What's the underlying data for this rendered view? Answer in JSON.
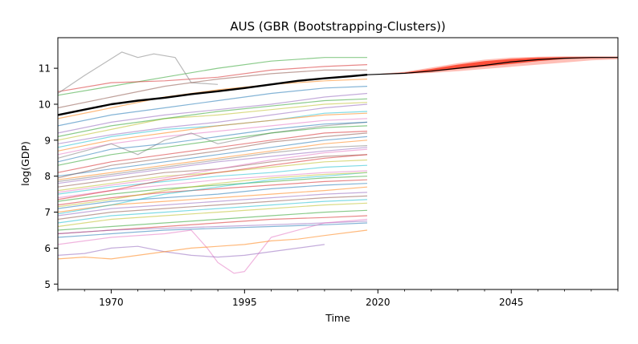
{
  "chart_data": {
    "type": "line",
    "title": "AUS (GBR (Bootstrapping-Clusters))",
    "xlabel": "Time",
    "ylabel": "log(GDP)",
    "xlim": [
      1960,
      2065
    ],
    "ylim": [
      4.85,
      11.85
    ],
    "x_ticks": [
      1970,
      1995,
      2020,
      2045
    ],
    "y_ticks": [
      5,
      6,
      7,
      8,
      9,
      10,
      11
    ],
    "grid": false,
    "legend": "none",
    "history_years": [
      1960,
      2018
    ],
    "main_series": {
      "x": [
        1960,
        1965,
        1970,
        1975,
        1980,
        1985,
        1990,
        1995,
        2000,
        2005,
        2010,
        2015,
        2018
      ],
      "y": [
        9.7,
        9.85,
        10.0,
        10.1,
        10.18,
        10.28,
        10.36,
        10.45,
        10.55,
        10.65,
        10.72,
        10.78,
        10.82
      ],
      "color": "#000000"
    },
    "forecast": {
      "x": [
        2018,
        2025,
        2030,
        2035,
        2040,
        2045,
        2050,
        2055,
        2060,
        2065
      ],
      "median": [
        10.82,
        10.86,
        10.92,
        11.0,
        11.08,
        11.18,
        11.24,
        11.28,
        11.3,
        11.3
      ],
      "inner_low": [
        10.82,
        10.85,
        10.9,
        10.98,
        11.05,
        11.12,
        11.2,
        11.26,
        11.28,
        11.29
      ],
      "inner_high": [
        10.82,
        10.88,
        10.98,
        11.1,
        11.2,
        11.26,
        11.3,
        11.31,
        11.31,
        11.31
      ],
      "outer_low": [
        10.82,
        10.84,
        10.87,
        10.92,
        10.98,
        11.04,
        11.1,
        11.16,
        11.22,
        11.25
      ],
      "outer_high": [
        10.82,
        10.9,
        11.02,
        11.14,
        11.24,
        11.3,
        11.32,
        11.33,
        11.33,
        11.33
      ],
      "color": "#ff2a10"
    },
    "background_series": [
      {
        "c": "#2ca02c",
        "x": [
          1960,
          1970,
          1980,
          1990,
          2000,
          2010,
          2018
        ],
        "y": [
          10.25,
          10.5,
          10.75,
          11.0,
          11.2,
          11.3,
          11.3
        ]
      },
      {
        "c": "#d62728",
        "x": [
          1960,
          1970,
          1980,
          1990,
          2000,
          2010,
          2018
        ],
        "y": [
          10.35,
          10.6,
          10.65,
          10.75,
          10.95,
          11.05,
          11.1
        ]
      },
      {
        "c": "#7f7f7f",
        "x": [
          1960,
          1965,
          1972,
          1975,
          1978,
          1982,
          1985,
          1990
        ],
        "y": [
          10.3,
          10.8,
          11.45,
          11.3,
          11.4,
          11.3,
          10.6,
          10.55
        ]
      },
      {
        "c": "#8c564b",
        "x": [
          1960,
          1970,
          1980,
          1990,
          2000,
          2010,
          2018
        ],
        "y": [
          9.9,
          10.2,
          10.5,
          10.7,
          10.85,
          10.95,
          10.95
        ]
      },
      {
        "c": "#ff7f0e",
        "x": [
          1960,
          1970,
          1980,
          1990,
          2000,
          2010,
          2018
        ],
        "y": [
          9.6,
          9.9,
          10.2,
          10.4,
          10.55,
          10.65,
          10.7
        ]
      },
      {
        "c": "#1f77b4",
        "x": [
          1960,
          1970,
          1980,
          1990,
          2000,
          2010,
          2018
        ],
        "y": [
          9.4,
          9.7,
          9.9,
          10.1,
          10.3,
          10.45,
          10.5
        ]
      },
      {
        "c": "#9467bd",
        "x": [
          1960,
          1970,
          1980,
          1990,
          2000,
          2010,
          2018
        ],
        "y": [
          9.2,
          9.5,
          9.7,
          9.85,
          10.0,
          10.2,
          10.3
        ]
      },
      {
        "c": "#bcbd22",
        "x": [
          1960,
          1970,
          1980,
          1990,
          2000,
          2010,
          2018
        ],
        "y": [
          9.0,
          9.3,
          9.6,
          9.7,
          9.85,
          10.0,
          10.05
        ]
      },
      {
        "c": "#17becf",
        "x": [
          1960,
          1970,
          1980,
          1990,
          2000,
          2010,
          2018
        ],
        "y": [
          8.8,
          9.1,
          9.3,
          9.4,
          9.55,
          9.75,
          9.8
        ]
      },
      {
        "c": "#e377c2",
        "x": [
          1960,
          1970,
          1980,
          1990,
          2000,
          2010,
          2018
        ],
        "y": [
          8.6,
          8.9,
          9.1,
          9.25,
          9.4,
          9.55,
          9.6
        ]
      },
      {
        "c": "#7f7f7f",
        "x": [
          1960,
          1970,
          1975,
          1980,
          1985,
          1990,
          2000,
          2010,
          2018
        ],
        "y": [
          8.5,
          8.9,
          8.6,
          9.0,
          9.2,
          8.9,
          9.2,
          9.4,
          9.5
        ]
      },
      {
        "c": "#2ca02c",
        "x": [
          1960,
          1970,
          1980,
          1990,
          2000,
          2010,
          2018
        ],
        "y": [
          8.3,
          8.6,
          8.8,
          9.0,
          9.2,
          9.35,
          9.4
        ]
      },
      {
        "c": "#d62728",
        "x": [
          1960,
          1970,
          1980,
          1990,
          2000,
          2010,
          2018
        ],
        "y": [
          8.1,
          8.4,
          8.6,
          8.8,
          9.0,
          9.2,
          9.25
        ]
      },
      {
        "c": "#1f77b4",
        "x": [
          1960,
          1970,
          1980,
          1990,
          2000,
          2010,
          2018
        ],
        "y": [
          8.0,
          8.2,
          8.4,
          8.6,
          8.8,
          9.0,
          9.1
        ]
      },
      {
        "c": "#ff7f0e",
        "x": [
          1960,
          1970,
          1980,
          1990,
          2000,
          2010,
          2018
        ],
        "y": [
          7.9,
          8.1,
          8.3,
          8.5,
          8.7,
          8.9,
          9.0
        ]
      },
      {
        "c": "#9467bd",
        "x": [
          1960,
          1970,
          1980,
          1990,
          2000,
          2010,
          2018
        ],
        "y": [
          7.8,
          8.0,
          8.2,
          8.4,
          8.55,
          8.7,
          8.8
        ]
      },
      {
        "c": "#8c564b",
        "x": [
          1960,
          1970,
          1980,
          1990,
          2000,
          2010,
          2018
        ],
        "y": [
          7.7,
          7.9,
          8.1,
          8.2,
          8.4,
          8.55,
          8.6
        ]
      },
      {
        "c": "#bcbd22",
        "x": [
          1960,
          1970,
          1980,
          1990,
          2000,
          2010,
          2018
        ],
        "y": [
          7.6,
          7.8,
          8.0,
          8.1,
          8.25,
          8.4,
          8.45
        ]
      },
      {
        "c": "#17becf",
        "x": [
          1960,
          1970,
          1980,
          1990,
          2000,
          2010,
          2018
        ],
        "y": [
          7.5,
          7.7,
          7.85,
          8.0,
          8.1,
          8.25,
          8.3
        ]
      },
      {
        "c": "#e377c2",
        "x": [
          1960,
          1970,
          1980,
          1990,
          2000,
          2010,
          2018
        ],
        "y": [
          7.4,
          7.6,
          7.75,
          7.9,
          8.0,
          8.1,
          8.15
        ]
      },
      {
        "c": "#2ca02c",
        "x": [
          1960,
          1970,
          1980,
          1990,
          2000,
          2010,
          2018
        ],
        "y": [
          7.3,
          7.5,
          7.65,
          7.75,
          7.85,
          7.95,
          8.0
        ]
      },
      {
        "c": "#d62728",
        "x": [
          1960,
          1970,
          1980,
          1990,
          2000,
          2010,
          2018
        ],
        "y": [
          7.2,
          7.4,
          7.55,
          7.65,
          7.75,
          7.85,
          7.9
        ]
      },
      {
        "c": "#1f77b4",
        "x": [
          1960,
          1970,
          1980,
          1990,
          2000,
          2010,
          2018
        ],
        "y": [
          7.1,
          7.3,
          7.4,
          7.5,
          7.65,
          7.75,
          7.8
        ]
      },
      {
        "c": "#ff7f0e",
        "x": [
          1960,
          1970,
          1980,
          1990,
          2000,
          2010,
          2018
        ],
        "y": [
          7.0,
          7.2,
          7.3,
          7.4,
          7.5,
          7.6,
          7.7
        ]
      },
      {
        "c": "#9467bd",
        "x": [
          1960,
          1970,
          1980,
          1990,
          2000,
          2010,
          2018
        ],
        "y": [
          6.9,
          7.1,
          7.2,
          7.3,
          7.4,
          7.5,
          7.55
        ]
      },
      {
        "c": "#8c564b",
        "x": [
          1960,
          1970,
          1980,
          1990,
          2000,
          2010,
          2018
        ],
        "y": [
          6.8,
          7.0,
          7.1,
          7.2,
          7.3,
          7.4,
          7.45
        ]
      },
      {
        "c": "#17becf",
        "x": [
          1960,
          1970,
          1980,
          1990,
          2000,
          2010,
          2018
        ],
        "y": [
          6.7,
          6.9,
          7.0,
          7.1,
          7.2,
          7.3,
          7.35
        ]
      },
      {
        "c": "#bcbd22",
        "x": [
          1960,
          1970,
          1980,
          1990,
          2000,
          2010,
          2018
        ],
        "y": [
          6.6,
          6.8,
          6.9,
          7.0,
          7.1,
          7.2,
          7.25
        ]
      },
      {
        "c": "#2ca02c",
        "x": [
          1960,
          1970,
          1980,
          1990,
          2000,
          2010,
          2018
        ],
        "y": [
          6.5,
          6.6,
          6.7,
          6.8,
          6.9,
          7.0,
          7.05
        ]
      },
      {
        "c": "#d62728",
        "x": [
          1960,
          1970,
          1980,
          1990,
          2000,
          2010,
          2018
        ],
        "y": [
          6.4,
          6.5,
          6.6,
          6.7,
          6.8,
          6.85,
          6.9
        ]
      },
      {
        "c": "#9467bd",
        "x": [
          1960,
          1970,
          1980,
          1990,
          2000,
          2010,
          2018
        ],
        "y": [
          6.4,
          6.5,
          6.55,
          6.6,
          6.65,
          6.7,
          6.75
        ]
      },
      {
        "c": "#1f77b4",
        "x": [
          1960,
          1970,
          1980,
          1990,
          2000,
          2010,
          2018
        ],
        "y": [
          6.3,
          6.4,
          6.5,
          6.55,
          6.6,
          6.65,
          6.7
        ]
      },
      {
        "c": "#e377c2",
        "x": [
          1960,
          1970,
          1980,
          1985,
          1988,
          1990,
          1993,
          1995,
          2000,
          2010,
          2018
        ],
        "y": [
          6.1,
          6.3,
          6.4,
          6.5,
          6.0,
          5.6,
          5.3,
          5.35,
          6.3,
          6.7,
          6.8
        ]
      },
      {
        "c": "#9467bd",
        "x": [
          1960,
          1965,
          1970,
          1975,
          1980,
          1985,
          1990,
          1995,
          2000,
          2005,
          2010
        ],
        "y": [
          5.8,
          5.85,
          6.0,
          6.05,
          5.9,
          5.8,
          5.75,
          5.8,
          5.9,
          6.0,
          6.1
        ]
      },
      {
        "c": "#ff7f0e",
        "x": [
          1960,
          1965,
          1970,
          1975,
          1980,
          1985,
          1990,
          1995,
          2000,
          2005,
          2010,
          2018
        ],
        "y": [
          5.7,
          5.75,
          5.7,
          5.8,
          5.9,
          6.0,
          6.05,
          6.1,
          6.2,
          6.25,
          6.35,
          6.5
        ]
      },
      {
        "c": "#ff7f0e",
        "x": [
          1960,
          1970,
          1980,
          1990,
          2000,
          2010,
          2018
        ],
        "y": [
          8.7,
          9.0,
          9.2,
          9.4,
          9.55,
          9.7,
          9.75
        ]
      },
      {
        "c": "#2ca02c",
        "x": [
          1960,
          1970,
          1980,
          1990,
          2000,
          2010,
          2018
        ],
        "y": [
          9.1,
          9.4,
          9.6,
          9.8,
          9.95,
          10.1,
          10.15
        ]
      },
      {
        "c": "#1f77b4",
        "x": [
          1960,
          1970,
          1980,
          1990,
          2000,
          2010,
          2018
        ],
        "y": [
          8.4,
          8.75,
          8.9,
          9.1,
          9.3,
          9.45,
          9.5
        ]
      },
      {
        "c": "#8c564b",
        "x": [
          1960,
          1970,
          1980,
          1990,
          2000,
          2010,
          2018
        ],
        "y": [
          7.95,
          8.3,
          8.5,
          8.7,
          8.95,
          9.1,
          9.2
        ]
      },
      {
        "c": "#d62728",
        "x": [
          1960,
          1970,
          1980,
          1990,
          2000,
          2010,
          2018
        ],
        "y": [
          7.35,
          7.6,
          7.9,
          8.1,
          8.3,
          8.5,
          8.6
        ]
      },
      {
        "c": "#17becf",
        "x": [
          1960,
          1970,
          1980,
          1990,
          2000,
          2010,
          2018
        ],
        "y": [
          6.95,
          7.2,
          7.5,
          7.7,
          7.9,
          8.0,
          8.1
        ]
      },
      {
        "c": "#bcbd22",
        "x": [
          1960,
          1970,
          1980,
          1990,
          2000,
          2010,
          2018
        ],
        "y": [
          7.15,
          7.35,
          7.6,
          7.8,
          7.95,
          8.05,
          8.1
        ]
      },
      {
        "c": "#9467bd",
        "x": [
          1960,
          1970,
          1980,
          1990,
          2000,
          2010,
          2018
        ],
        "y": [
          8.9,
          9.15,
          9.35,
          9.5,
          9.7,
          9.9,
          10.0
        ]
      },
      {
        "c": "#e377c2",
        "x": [
          1960,
          1970,
          1980,
          1990,
          2000,
          2010,
          2018
        ],
        "y": [
          7.55,
          7.75,
          7.95,
          8.2,
          8.45,
          8.65,
          8.75
        ]
      },
      {
        "c": "#7f7f7f",
        "x": [
          1960,
          1970,
          1980,
          1990,
          2000,
          2010,
          2018
        ],
        "y": [
          7.85,
          8.05,
          8.25,
          8.45,
          8.65,
          8.8,
          8.85
        ]
      }
    ]
  }
}
